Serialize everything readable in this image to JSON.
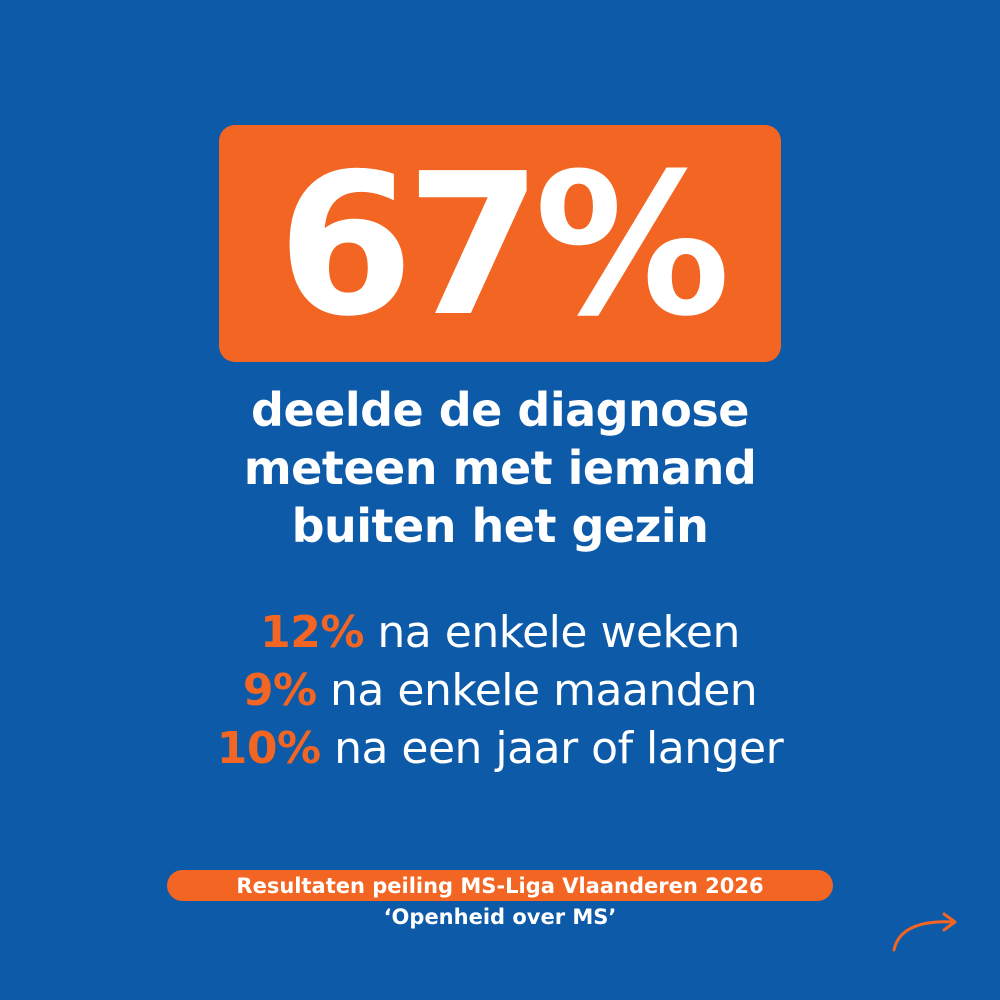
{
  "headline": {
    "value": "67%"
  },
  "subhead": {
    "lines": [
      "deelde de diagnose",
      "meteen met iemand",
      "buiten het gezin"
    ]
  },
  "stats": [
    {
      "percent": "12%",
      "text": " na enkele weken"
    },
    {
      "percent": "9%",
      "text": " na enkele maanden"
    },
    {
      "percent": "10%",
      "text": " na een jaar of langer"
    }
  ],
  "source": {
    "title": "Resultaten peiling MS-Liga Vlaanderen 2026",
    "subtitle": "‘Openheid over MS’"
  },
  "icons": {
    "next": "arrow-right-icon"
  },
  "colors": {
    "background": "#0c5aa8",
    "accent": "#f26522",
    "text": "#ffffff"
  }
}
